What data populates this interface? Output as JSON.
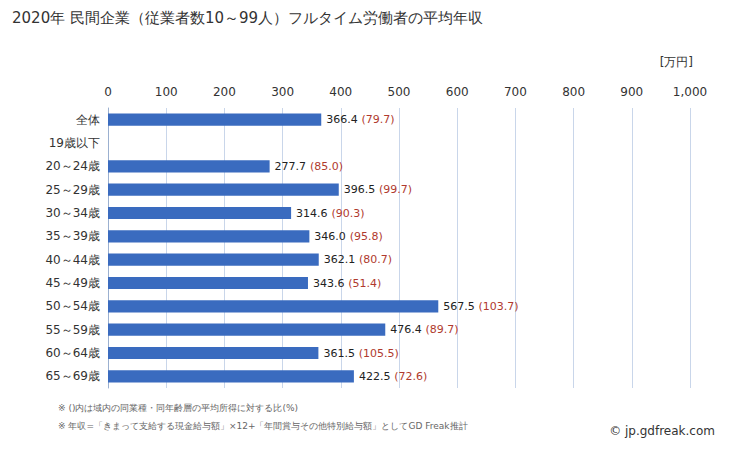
{
  "chart_data": {
    "type": "bar",
    "orientation": "horizontal",
    "title": "2020年 民間企業（従業者数10～99人）フルタイム労働者の平均年収",
    "unit_label": "[万円]",
    "categories": [
      "全体",
      "19歳以下",
      "20～24歳",
      "25～29歳",
      "30～34歳",
      "35～39歳",
      "40～44歳",
      "45～49歳",
      "50～54歳",
      "55～59歳",
      "60～64歳",
      "65～69歳"
    ],
    "values": [
      366.4,
      null,
      277.7,
      396.5,
      314.6,
      346.0,
      362.1,
      343.6,
      567.5,
      476.4,
      361.5,
      422.5
    ],
    "value_labels": [
      "366.4",
      null,
      "277.7",
      "396.5",
      "314.6",
      "346.0",
      "362.1",
      "343.6",
      "567.5",
      "476.4",
      "361.5",
      "422.5"
    ],
    "ratio_labels": [
      "(79.7)",
      null,
      "(85.0)",
      "(99.7)",
      "(90.3)",
      "(95.8)",
      "(80.7)",
      "(51.4)",
      "(103.7)",
      "(89.7)",
      "(105.5)",
      "(72.6)"
    ],
    "color": "#3a6bbf",
    "xlim": [
      0,
      1000
    ],
    "xticks": [
      0,
      100,
      200,
      300,
      400,
      500,
      600,
      700,
      800,
      900,
      1000
    ],
    "grid": true,
    "data_labels": true,
    "footnotes": [
      "※ ()内は域内の同業種・同年齢層の平均所得に対する比(%)",
      "※ 年収=「きまって支給する現金給与額」×12+「年間賞与その他特別給与額」としてGD Freak推計"
    ],
    "credit": "© jp.gdfreak.com"
  }
}
